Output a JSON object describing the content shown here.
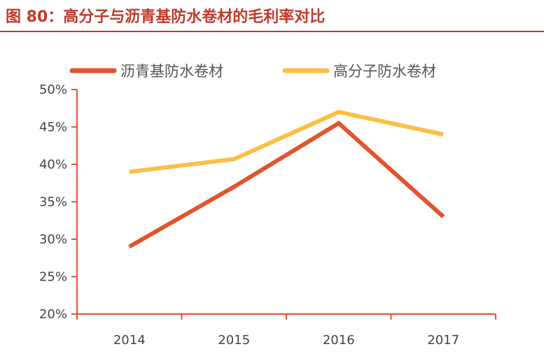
{
  "title": "图 80：高分子与沥青基防水卷材的毛利率对比",
  "chart_data": {
    "type": "line",
    "categories": [
      "2014",
      "2015",
      "2016",
      "2017"
    ],
    "y_ticks": [
      "20%",
      "25%",
      "30%",
      "35%",
      "40%",
      "45%",
      "50%"
    ],
    "ylim": [
      0.2,
      0.5
    ],
    "legend_position": "top",
    "grid": false,
    "series": [
      {
        "name": "沥青基防水卷材",
        "color": "#e2532f",
        "values": [
          0.29,
          0.37,
          0.455,
          0.33
        ]
      },
      {
        "name": "高分子防水卷材",
        "color": "#fbbf45",
        "values": [
          0.39,
          0.407,
          0.47,
          0.44
        ]
      }
    ]
  }
}
